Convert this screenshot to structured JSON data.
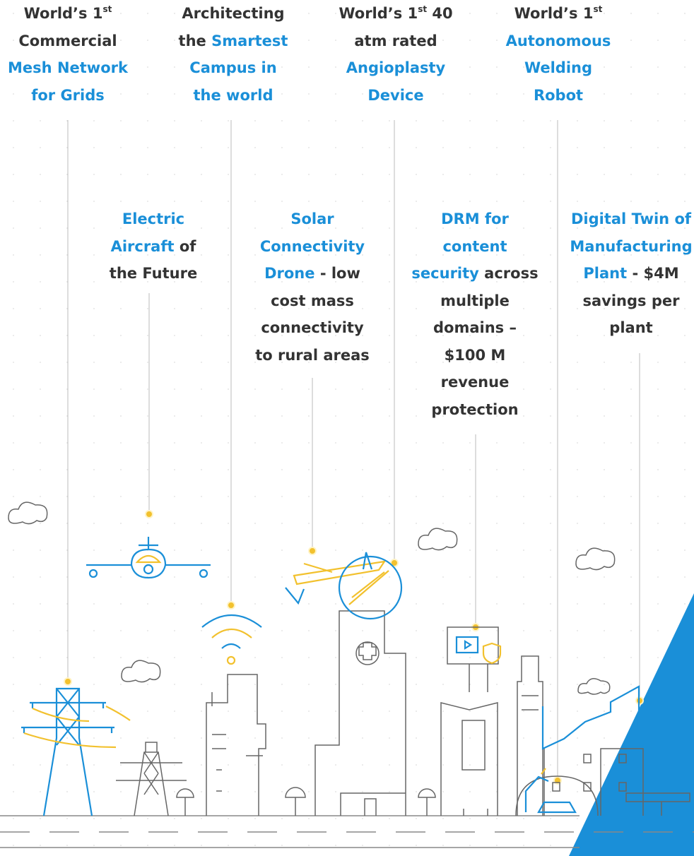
{
  "captions": [
    {
      "lines": [
        [
          {
            "text": "World’s 1"
          },
          {
            "text": "st",
            "sup": true
          }
        ],
        [
          {
            "text": "Commercial"
          }
        ],
        [
          {
            "text": "Mesh Network",
            "highlight": true
          }
        ],
        [
          {
            "text": "for Grids",
            "highlight": true
          }
        ]
      ]
    },
    {
      "lines": [
        [
          {
            "text": "Architecting"
          }
        ],
        [
          {
            "text": "the "
          },
          {
            "text": "Smartest",
            "highlight": true
          }
        ],
        [
          {
            "text": "Campus in",
            "highlight": true
          }
        ],
        [
          {
            "text": "the world",
            "highlight": true
          }
        ]
      ]
    },
    {
      "lines": [
        [
          {
            "text": "World’s 1"
          },
          {
            "text": "st",
            "sup": true
          },
          {
            "text": " 40"
          }
        ],
        [
          {
            "text": "atm rated"
          }
        ],
        [
          {
            "text": "Angioplasty",
            "highlight": true
          }
        ],
        [
          {
            "text": "Device",
            "highlight": true
          }
        ]
      ]
    },
    {
      "lines": [
        [
          {
            "text": "World’s 1"
          },
          {
            "text": "st",
            "sup": true
          }
        ],
        [
          {
            "text": "Autonomous",
            "highlight": true
          }
        ],
        [
          {
            "text": "Welding",
            "highlight": true
          }
        ],
        [
          {
            "text": "Robot",
            "highlight": true
          }
        ]
      ]
    },
    {
      "lines": [
        [
          {
            "text": "Electric",
            "highlight": true
          }
        ],
        [
          {
            "text": "Aircraft",
            "highlight": true
          },
          {
            "text": " of"
          }
        ],
        [
          {
            "text": "the Future"
          }
        ]
      ]
    },
    {
      "lines": [
        [
          {
            "text": "Solar",
            "highlight": true
          }
        ],
        [
          {
            "text": "Connectivity",
            "highlight": true
          }
        ],
        [
          {
            "text": "Drone",
            "highlight": true
          },
          {
            "text": " - low"
          }
        ],
        [
          {
            "text": "cost mass"
          }
        ],
        [
          {
            "text": "connectivity"
          }
        ],
        [
          {
            "text": "to rural areas"
          }
        ]
      ]
    },
    {
      "lines": [
        [
          {
            "text": "DRM for",
            "highlight": true
          }
        ],
        [
          {
            "text": "content",
            "highlight": true
          }
        ],
        [
          {
            "text": "security",
            "highlight": true
          },
          {
            "text": " across"
          }
        ],
        [
          {
            "text": "multiple"
          }
        ],
        [
          {
            "text": "domains –"
          }
        ],
        [
          {
            "text": "$100 M"
          }
        ],
        [
          {
            "text": "revenue"
          }
        ],
        [
          {
            "text": "protection"
          }
        ]
      ]
    },
    {
      "lines": [
        [
          {
            "text": "Digital Twin of",
            "highlight": true
          }
        ],
        [
          {
            "text": "Manufacturing",
            "highlight": true
          }
        ],
        [
          {
            "text": "Plant",
            "highlight": true
          },
          {
            "text": " - $4M"
          }
        ],
        [
          {
            "text": "savings per"
          }
        ],
        [
          {
            "text": "plant"
          }
        ]
      ]
    }
  ]
}
